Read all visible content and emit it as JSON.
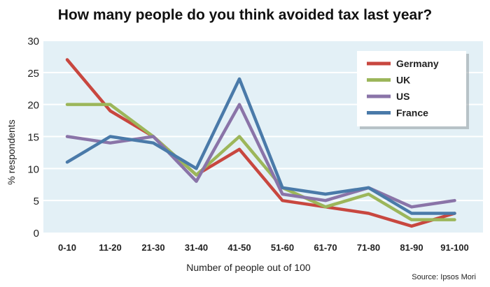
{
  "chart_data": {
    "type": "line",
    "title": "How many people do you think avoided tax last year?",
    "categories": [
      "0-10",
      "11-20",
      "21-30",
      "31-40",
      "41-50",
      "51-60",
      "61-70",
      "71-80",
      "81-90",
      "91-100"
    ],
    "series": [
      {
        "name": "Germany",
        "color": "#c8473f",
        "values": [
          27,
          19,
          15,
          9,
          13,
          5,
          4,
          3,
          1,
          3
        ]
      },
      {
        "name": "UK",
        "color": "#9cb65a",
        "values": [
          20,
          20,
          15,
          9,
          15,
          7,
          4,
          6,
          2,
          2
        ]
      },
      {
        "name": "US",
        "color": "#8a74a8",
        "values": [
          15,
          14,
          15,
          8,
          20,
          6,
          5,
          7,
          4,
          5
        ]
      },
      {
        "name": "France",
        "color": "#4a7aa9",
        "values": [
          11,
          15,
          14,
          10,
          24,
          7,
          6,
          7,
          3,
          3
        ]
      }
    ],
    "ylabel": "% respondents",
    "xlabel": "Number of people out of 100",
    "ylim": [
      0,
      30
    ],
    "yticks": [
      0,
      5,
      10,
      15,
      20,
      25,
      30
    ],
    "grid": true,
    "legend_position": "top-right",
    "source": "Source: Ipsos Mori",
    "background_color": "#e3f0f6",
    "grid_color": "#ffffff"
  }
}
